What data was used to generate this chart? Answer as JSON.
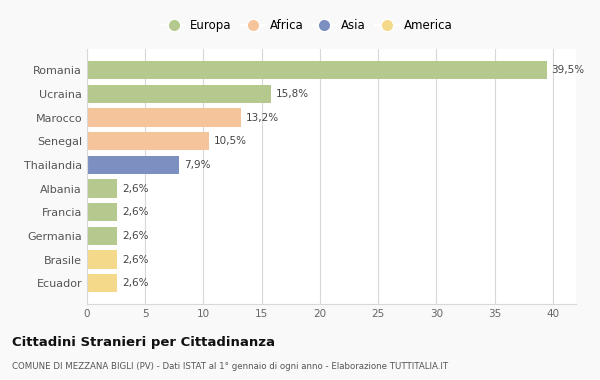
{
  "countries": [
    "Romania",
    "Ucraina",
    "Marocco",
    "Senegal",
    "Thailandia",
    "Albania",
    "Francia",
    "Germania",
    "Brasile",
    "Ecuador"
  ],
  "values": [
    39.5,
    15.8,
    13.2,
    10.5,
    7.9,
    2.6,
    2.6,
    2.6,
    2.6,
    2.6
  ],
  "labels": [
    "39,5%",
    "15,8%",
    "13,2%",
    "10,5%",
    "7,9%",
    "2,6%",
    "2,6%",
    "2,6%",
    "2,6%",
    "2,6%"
  ],
  "colors": [
    "#b5c98e",
    "#b5c98e",
    "#f5c49a",
    "#f5c49a",
    "#7b8fc0",
    "#b5c98e",
    "#b5c98e",
    "#b5c98e",
    "#f5d98a",
    "#f5d98a"
  ],
  "legend_labels": [
    "Europa",
    "Africa",
    "Asia",
    "America"
  ],
  "legend_colors": [
    "#b5c98e",
    "#f5c49a",
    "#7b8fc0",
    "#f5d98a"
  ],
  "title": "Cittadini Stranieri per Cittadinanza",
  "subtitle": "COMUNE DI MEZZANA BIGLI (PV) - Dati ISTAT al 1° gennaio di ogni anno - Elaborazione TUTTITALIA.IT",
  "xlim": [
    0,
    42
  ],
  "xticks": [
    0,
    5,
    10,
    15,
    20,
    25,
    30,
    35,
    40
  ],
  "background_color": "#f9f9f9",
  "bar_background": "#ffffff",
  "grid_color": "#d8d8d8"
}
